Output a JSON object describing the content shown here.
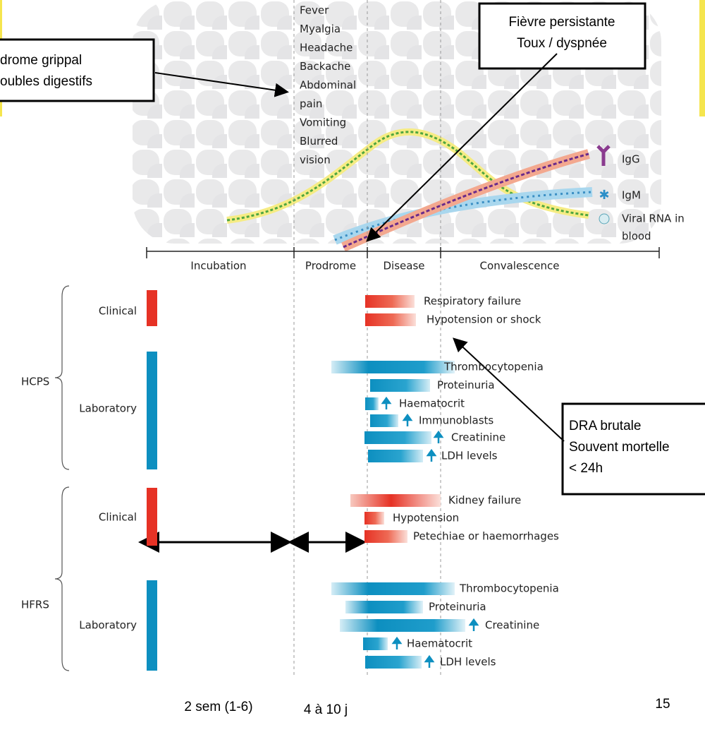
{
  "callouts": [
    {
      "lines": [
        "drome grippal",
        "oubles digestifs"
      ]
    },
    {
      "lines": [
        "Fièvre persistante",
        "Toux / dyspnée"
      ]
    },
    {
      "lines": [
        "DRA brutale",
        "Souvent mortelle",
        "< 24h"
      ]
    }
  ],
  "symptoms": [
    "Fever",
    "Myalgia",
    "Headache",
    "Backache",
    "Abdominal",
    "pain",
    "Vomiting",
    "Blurred",
    "vision"
  ],
  "legend": [
    {
      "lines": [
        "IgG"
      ]
    },
    {
      "lines": [
        "IgM"
      ]
    },
    {
      "lines": [
        "Viral RNA in",
        "blood"
      ]
    }
  ],
  "phases": [
    "Incubation",
    "Prodrome",
    "Disease",
    "Convalescence"
  ],
  "groups": [
    {
      "name": "HCPS",
      "sections": [
        {
          "name": "Clinical",
          "rows": [
            "Respiratory failure",
            "Hypotension or shock"
          ]
        },
        {
          "name": "Laboratory",
          "rows": [
            "Thrombocytopenia",
            "Proteinuria",
            "Haematocrit",
            "Immunoblasts",
            "Creatinine",
            "LDH levels"
          ]
        }
      ]
    },
    {
      "name": "HFRS",
      "sections": [
        {
          "name": "Clinical",
          "rows": [
            "Kidney failure",
            "Hypotension",
            "Petechiae or haemorrhages"
          ]
        },
        {
          "name": "Laboratory",
          "rows": [
            "Thrombocytopenia",
            "Proteinuria",
            "Creatinine",
            "Haematocrit",
            "LDH levels"
          ]
        }
      ]
    }
  ],
  "durations": [
    "2 sem (1-6)",
    "4 à 10 j"
  ],
  "page_number": "15"
}
